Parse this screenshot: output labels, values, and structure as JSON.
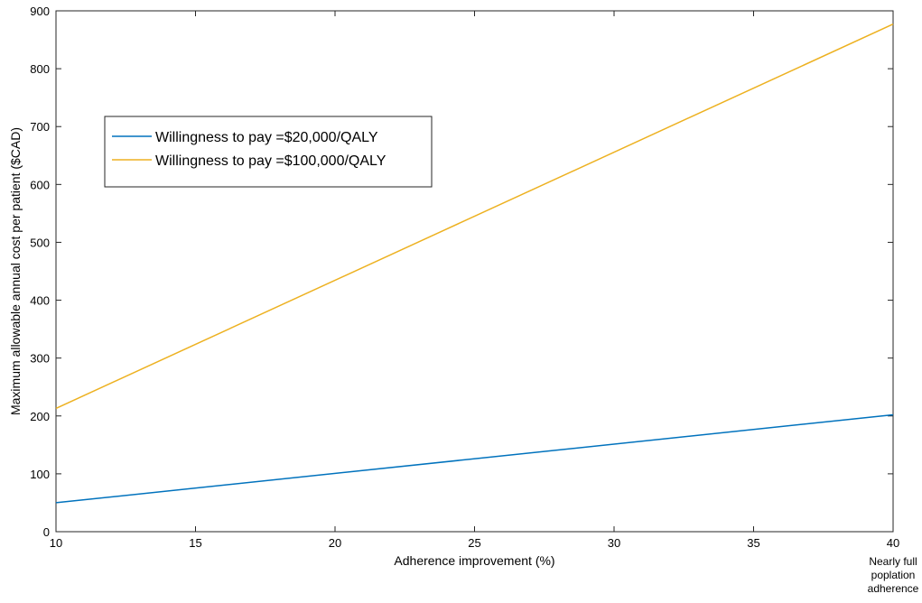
{
  "chart_data": {
    "type": "line",
    "title": "",
    "xlabel": "Adherence improvement (%)",
    "ylabel": "Maximum allowable annual cost per patient ($CAD)",
    "xlim": [
      10,
      40
    ],
    "ylim": [
      0,
      900
    ],
    "x_ticks": [
      10,
      15,
      20,
      25,
      30,
      35,
      40
    ],
    "y_ticks": [
      0,
      100,
      200,
      300,
      400,
      500,
      600,
      700,
      800,
      900
    ],
    "x_end_note": [
      "Nearly full",
      "poplation",
      "adherence"
    ],
    "grid": false,
    "legend_position": "upper-left",
    "series": [
      {
        "name": "Willingness to pay =$20,000/QALY",
        "color": "#0072BD",
        "x": [
          10,
          40
        ],
        "y": [
          50,
          202
        ]
      },
      {
        "name": "Willingness to pay =$100,000/QALY",
        "color": "#EDB120",
        "x": [
          10,
          40
        ],
        "y": [
          213,
          877
        ]
      }
    ]
  }
}
